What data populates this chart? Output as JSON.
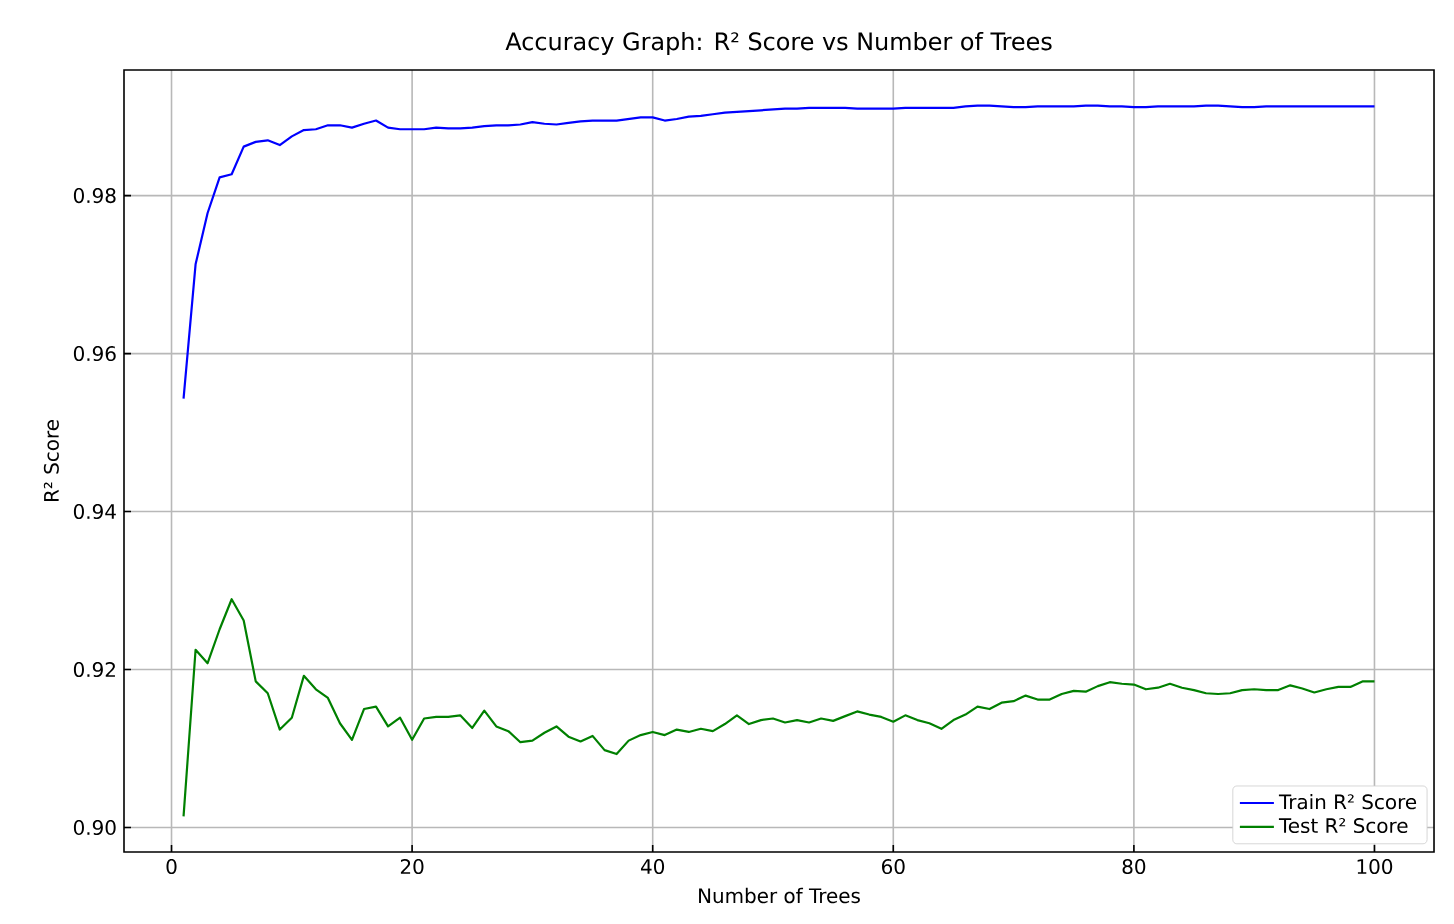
{
  "chart_data": {
    "type": "line",
    "title": "Accuracy Graph: R² Score vs Number of Trees",
    "xlabel": "Number of Trees",
    "ylabel": "R² Score",
    "x": [
      1,
      2,
      3,
      4,
      5,
      6,
      7,
      8,
      9,
      10,
      11,
      12,
      13,
      14,
      15,
      16,
      17,
      18,
      19,
      20,
      21,
      22,
      23,
      24,
      25,
      26,
      27,
      28,
      29,
      30,
      31,
      32,
      33,
      34,
      35,
      36,
      37,
      38,
      39,
      40,
      41,
      42,
      43,
      44,
      45,
      46,
      47,
      48,
      49,
      50,
      51,
      52,
      53,
      54,
      55,
      56,
      57,
      58,
      59,
      60,
      61,
      62,
      63,
      64,
      65,
      66,
      67,
      68,
      69,
      70,
      71,
      72,
      73,
      74,
      75,
      76,
      77,
      78,
      79,
      80,
      81,
      82,
      83,
      84,
      85,
      86,
      87,
      88,
      89,
      90,
      91,
      92,
      93,
      94,
      95,
      96,
      97,
      98,
      99,
      100
    ],
    "series": [
      {
        "name": "Train R² Score",
        "color": "#0000ff",
        "values": [
          0.9543,
          0.9713,
          0.9778,
          0.9823,
          0.9827,
          0.9862,
          0.9868,
          0.987,
          0.9864,
          0.9875,
          0.9883,
          0.9884,
          0.9889,
          0.9889,
          0.9886,
          0.9891,
          0.9895,
          0.9886,
          0.9884,
          0.9884,
          0.9884,
          0.9886,
          0.9885,
          0.9885,
          0.9886,
          0.9888,
          0.9889,
          0.9889,
          0.989,
          0.9893,
          0.9891,
          0.989,
          0.9892,
          0.9894,
          0.9895,
          0.9895,
          0.9895,
          0.9897,
          0.9899,
          0.9899,
          0.9895,
          0.9897,
          0.99,
          0.9901,
          0.9903,
          0.9905,
          0.9906,
          0.9907,
          0.9908,
          0.9909,
          0.991,
          0.991,
          0.9911,
          0.9911,
          0.9911,
          0.9911,
          0.991,
          0.991,
          0.991,
          0.991,
          0.9911,
          0.9911,
          0.9911,
          0.9911,
          0.9911,
          0.9913,
          0.9914,
          0.9914,
          0.9913,
          0.9912,
          0.9912,
          0.9913,
          0.9913,
          0.9913,
          0.9913,
          0.9914,
          0.9914,
          0.9913,
          0.9913,
          0.9912,
          0.9912,
          0.9913,
          0.9913,
          0.9913,
          0.9913,
          0.9914,
          0.9914,
          0.9913,
          0.9912,
          0.9912,
          0.9913,
          0.9913,
          0.9913,
          0.9913,
          0.9913,
          0.9913,
          0.9913,
          0.9913,
          0.9913,
          0.9913
        ]
      },
      {
        "name": "Test R² Score",
        "color": "#008000",
        "values": [
          0.9014,
          0.9225,
          0.9208,
          0.9251,
          0.9289,
          0.9262,
          0.9185,
          0.917,
          0.9124,
          0.9139,
          0.9192,
          0.9175,
          0.9164,
          0.9132,
          0.9111,
          0.915,
          0.9153,
          0.9128,
          0.9139,
          0.9111,
          0.9138,
          0.914,
          0.914,
          0.9142,
          0.9126,
          0.9148,
          0.9128,
          0.9122,
          0.9108,
          0.911,
          0.912,
          0.9128,
          0.9115,
          0.9109,
          0.9116,
          0.9098,
          0.9093,
          0.911,
          0.9117,
          0.9121,
          0.9117,
          0.9124,
          0.9121,
          0.9125,
          0.9122,
          0.9131,
          0.9142,
          0.9131,
          0.9136,
          0.9138,
          0.9133,
          0.9136,
          0.9133,
          0.9138,
          0.9135,
          0.9141,
          0.9147,
          0.9143,
          0.914,
          0.9134,
          0.9142,
          0.9136,
          0.9132,
          0.9125,
          0.9136,
          0.9143,
          0.9153,
          0.915,
          0.9158,
          0.916,
          0.9167,
          0.9162,
          0.9162,
          0.9169,
          0.9173,
          0.9172,
          0.9179,
          0.9184,
          0.9182,
          0.9181,
          0.9175,
          0.9177,
          0.9182,
          0.9177,
          0.9174,
          0.917,
          0.9169,
          0.917,
          0.9174,
          0.9175,
          0.9174,
          0.9174,
          0.918,
          0.9176,
          0.9171,
          0.9175,
          0.9178,
          0.9178,
          0.9185,
          0.9185
        ]
      }
    ],
    "xlim": [
      -3.95,
      104.95
    ],
    "ylim": [
      0.8969,
      0.9959
    ],
    "xticks": [
      0,
      20,
      40,
      60,
      80,
      100
    ],
    "yticks": [
      {
        "value": 0.9,
        "label": "0.90"
      },
      {
        "value": 0.92,
        "label": "0.92"
      },
      {
        "value": 0.94,
        "label": "0.94"
      },
      {
        "value": 0.96,
        "label": "0.96"
      },
      {
        "value": 0.98,
        "label": "0.98"
      }
    ],
    "grid": true,
    "legend": "bottom right",
    "marker": "none",
    "line_style": "solid"
  }
}
